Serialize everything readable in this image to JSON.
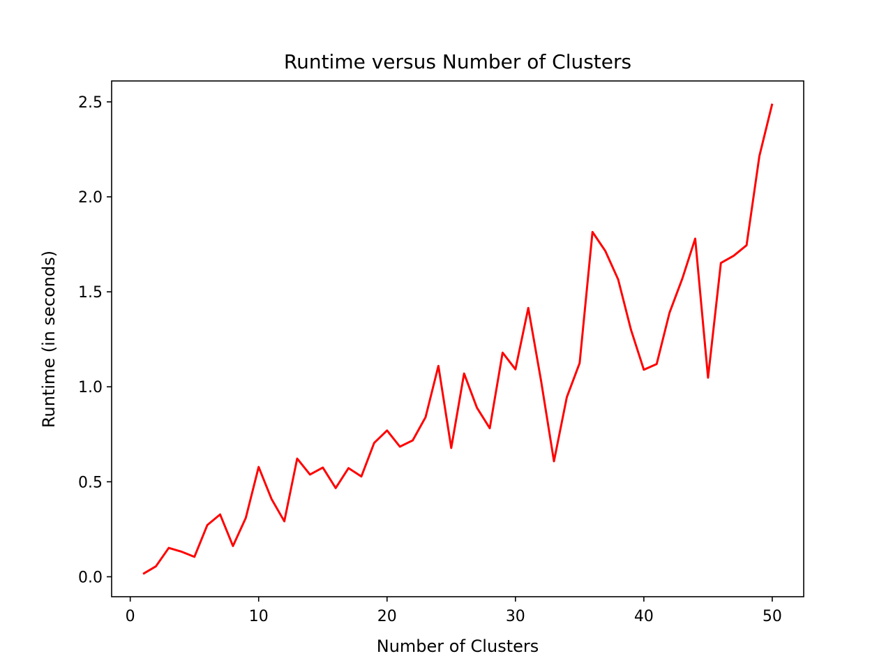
{
  "chart_data": {
    "type": "line",
    "title": "Runtime versus Number of Clusters",
    "xlabel": "Number of Clusters",
    "ylabel": "Runtime (in seconds)",
    "xlim": [
      -1.45,
      52.45
    ],
    "ylim": [
      -0.105,
      2.61
    ],
    "xticks": [
      0,
      10,
      20,
      30,
      40,
      50
    ],
    "xtick_labels": [
      "0",
      "10",
      "20",
      "30",
      "40",
      "50"
    ],
    "yticks": [
      0.0,
      0.5,
      1.0,
      1.5,
      2.0,
      2.5
    ],
    "ytick_labels": [
      "0.0",
      "0.5",
      "1.0",
      "1.5",
      "2.0",
      "2.5"
    ],
    "grid": false,
    "series": [
      {
        "color": "#ff0000",
        "x": [
          1,
          2,
          3,
          4,
          5,
          6,
          7,
          8,
          9,
          10,
          11,
          12,
          13,
          14,
          15,
          16,
          17,
          18,
          19,
          20,
          21,
          22,
          23,
          24,
          25,
          26,
          27,
          28,
          29,
          30,
          31,
          32,
          33,
          34,
          35,
          36,
          37,
          38,
          39,
          40,
          41,
          42,
          43,
          44,
          45,
          46,
          47,
          48,
          49,
          50
        ],
        "y": [
          0.015,
          0.055,
          0.152,
          0.132,
          0.105,
          0.272,
          0.328,
          0.162,
          0.31,
          0.578,
          0.41,
          0.292,
          0.622,
          0.538,
          0.575,
          0.467,
          0.572,
          0.528,
          0.705,
          0.77,
          0.685,
          0.718,
          0.84,
          1.11,
          0.678,
          1.07,
          0.89,
          0.782,
          1.18,
          1.092,
          1.415,
          1.03,
          0.608,
          0.945,
          1.125,
          1.815,
          1.715,
          1.565,
          1.3,
          1.09,
          1.12,
          1.39,
          1.57,
          1.78,
          1.048,
          1.652,
          1.69,
          1.745,
          2.215,
          2.49
        ]
      }
    ]
  }
}
